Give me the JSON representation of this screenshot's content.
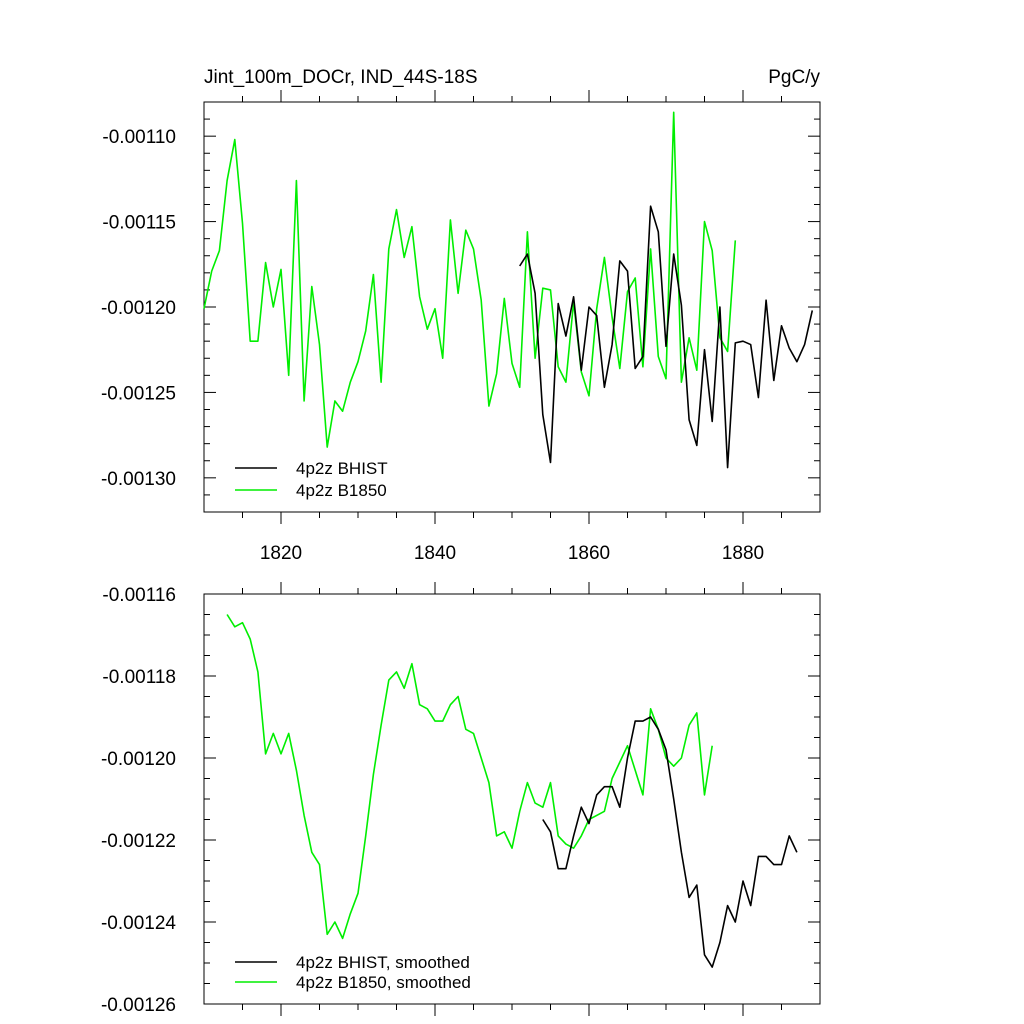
{
  "chart_data": [
    {
      "type": "line",
      "title": "Jint_100m_DOCr, IND_44S-18S",
      "units": "PgC/y",
      "xlim": [
        1810,
        1890
      ],
      "ylim": [
        -0.00132,
        -0.00108
      ],
      "x_ticks": [
        1820,
        1840,
        1860,
        1880
      ],
      "x_tick_labels": [
        "1820",
        "1840",
        "1860",
        "1880"
      ],
      "y_ticks": [
        -0.0011,
        -0.00115,
        -0.0012,
        -0.00125,
        -0.0013
      ],
      "y_tick_labels": [
        "-0.00110",
        "-0.00115",
        "-0.00120",
        "-0.00125",
        "-0.00130"
      ],
      "legend_position": "bottom-left",
      "series": [
        {
          "name": "4p2z BHIST",
          "color": "#000000",
          "x": [
            1851,
            1852,
            1853,
            1854,
            1855,
            1856,
            1857,
            1858,
            1859,
            1860,
            1861,
            1862,
            1863,
            1864,
            1865,
            1866,
            1867,
            1868,
            1869,
            1870,
            1871,
            1872,
            1873,
            1874,
            1875,
            1876,
            1877,
            1878,
            1879,
            1880,
            1881,
            1882,
            1883,
            1884,
            1885,
            1886,
            1887,
            1888,
            1889
          ],
          "values": [
            -0.001176,
            -0.001169,
            -0.001192,
            -0.001263,
            -0.001291,
            -0.001198,
            -0.001217,
            -0.001194,
            -0.001237,
            -0.0012,
            -0.001205,
            -0.001247,
            -0.001222,
            -0.001173,
            -0.001179,
            -0.001236,
            -0.001229,
            -0.001141,
            -0.001156,
            -0.001223,
            -0.001169,
            -0.001199,
            -0.001266,
            -0.001281,
            -0.001225,
            -0.001267,
            -0.0012,
            -0.001294,
            -0.001221,
            -0.00122,
            -0.001222,
            -0.001253,
            -0.001196,
            -0.001243,
            -0.001211,
            -0.001224,
            -0.001232,
            -0.001222,
            -0.001202
          ]
        },
        {
          "name": "4p2z B1850",
          "color": "#00ee00",
          "x": [
            1810,
            1811,
            1812,
            1813,
            1814,
            1815,
            1816,
            1817,
            1818,
            1819,
            1820,
            1821,
            1822,
            1823,
            1824,
            1825,
            1826,
            1827,
            1828,
            1829,
            1830,
            1831,
            1832,
            1833,
            1834,
            1835,
            1836,
            1837,
            1838,
            1839,
            1840,
            1841,
            1842,
            1843,
            1844,
            1845,
            1846,
            1847,
            1848,
            1849,
            1850,
            1851,
            1852,
            1853,
            1854,
            1855,
            1856,
            1857,
            1858,
            1859,
            1860,
            1861,
            1862,
            1863,
            1864,
            1865,
            1866,
            1867,
            1868,
            1869,
            1870,
            1871,
            1872,
            1873,
            1874,
            1875,
            1876,
            1877,
            1878,
            1879
          ],
          "values": [
            -0.001201,
            -0.001179,
            -0.001167,
            -0.001126,
            -0.001102,
            -0.001151,
            -0.00122,
            -0.00122,
            -0.001174,
            -0.0012,
            -0.001178,
            -0.00124,
            -0.001126,
            -0.001255,
            -0.001188,
            -0.001222,
            -0.001282,
            -0.001255,
            -0.001261,
            -0.001244,
            -0.001232,
            -0.001214,
            -0.001181,
            -0.001244,
            -0.001166,
            -0.001143,
            -0.001171,
            -0.001153,
            -0.001194,
            -0.001213,
            -0.001201,
            -0.00123,
            -0.001149,
            -0.001192,
            -0.001155,
            -0.001166,
            -0.001196,
            -0.001258,
            -0.001239,
            -0.001195,
            -0.001233,
            -0.001247,
            -0.001156,
            -0.00123,
            -0.001189,
            -0.00119,
            -0.001235,
            -0.001244,
            -0.001197,
            -0.001238,
            -0.001252,
            -0.001201,
            -0.001171,
            -0.001206,
            -0.001236,
            -0.001191,
            -0.001183,
            -0.001235,
            -0.001166,
            -0.001229,
            -0.001242,
            -0.001086,
            -0.001244,
            -0.001218,
            -0.001237,
            -0.00115,
            -0.001167,
            -0.001218,
            -0.001226,
            -0.001161
          ]
        }
      ]
    },
    {
      "type": "line",
      "xlim": [
        1810,
        1890
      ],
      "ylim": [
        -0.00126,
        -0.00116
      ],
      "x_ticks": [
        1820,
        1840,
        1860,
        1880
      ],
      "y_ticks": [
        -0.00116,
        -0.00118,
        -0.0012,
        -0.00122,
        -0.00124,
        -0.00126
      ],
      "y_tick_labels": [
        "-0.00116",
        "-0.00118",
        "-0.00120",
        "-0.00122",
        "-0.00124",
        "-0.00126"
      ],
      "legend_position": "bottom-left",
      "series": [
        {
          "name": "4p2z BHIST, smoothed",
          "color": "#000000",
          "x": [
            1854,
            1855,
            1856,
            1857,
            1858,
            1859,
            1860,
            1861,
            1862,
            1863,
            1864,
            1865,
            1866,
            1867,
            1868,
            1869,
            1870,
            1871,
            1872,
            1873,
            1874,
            1875,
            1876,
            1877,
            1878,
            1879,
            1880,
            1881,
            1882,
            1883,
            1884,
            1885,
            1886,
            1887
          ],
          "values": [
            -0.001215,
            -0.001218,
            -0.001227,
            -0.001227,
            -0.001219,
            -0.001212,
            -0.001216,
            -0.001209,
            -0.001207,
            -0.001207,
            -0.001212,
            -0.0012,
            -0.001191,
            -0.001191,
            -0.00119,
            -0.001193,
            -0.001198,
            -0.00121,
            -0.001223,
            -0.001234,
            -0.001231,
            -0.001248,
            -0.001251,
            -0.001245,
            -0.001236,
            -0.00124,
            -0.00123,
            -0.001236,
            -0.001224,
            -0.001224,
            -0.001226,
            -0.001226,
            -0.001219,
            -0.001223
          ]
        },
        {
          "name": "4p2z B1850, smoothed",
          "color": "#00ee00",
          "x": [
            1813,
            1814,
            1815,
            1816,
            1817,
            1818,
            1819,
            1820,
            1821,
            1822,
            1823,
            1824,
            1825,
            1826,
            1827,
            1828,
            1829,
            1830,
            1831,
            1832,
            1833,
            1834,
            1835,
            1836,
            1837,
            1838,
            1839,
            1840,
            1841,
            1842,
            1843,
            1844,
            1845,
            1846,
            1847,
            1848,
            1849,
            1850,
            1851,
            1852,
            1853,
            1854,
            1855,
            1856,
            1857,
            1858,
            1859,
            1860,
            1861,
            1862,
            1863,
            1864,
            1865,
            1866,
            1867,
            1868,
            1869,
            1870,
            1871,
            1872,
            1873,
            1874,
            1875,
            1876
          ],
          "values": [
            -0.001165,
            -0.001168,
            -0.001167,
            -0.001171,
            -0.001179,
            -0.001199,
            -0.001194,
            -0.001199,
            -0.001194,
            -0.001203,
            -0.001214,
            -0.001223,
            -0.001226,
            -0.001243,
            -0.00124,
            -0.001244,
            -0.001238,
            -0.001233,
            -0.001219,
            -0.001204,
            -0.001192,
            -0.001181,
            -0.001179,
            -0.001183,
            -0.001177,
            -0.001187,
            -0.001188,
            -0.001191,
            -0.001191,
            -0.001187,
            -0.001185,
            -0.001193,
            -0.001194,
            -0.0012,
            -0.001206,
            -0.001219,
            -0.001218,
            -0.001222,
            -0.001213,
            -0.001206,
            -0.001211,
            -0.001212,
            -0.001206,
            -0.001219,
            -0.001221,
            -0.001222,
            -0.001219,
            -0.001215,
            -0.001214,
            -0.001213,
            -0.001205,
            -0.001201,
            -0.001197,
            -0.001203,
            -0.001209,
            -0.001188,
            -0.001193,
            -0.0012,
            -0.001202,
            -0.0012,
            -0.001192,
            -0.001189,
            -0.001209,
            -0.001197
          ]
        }
      ]
    }
  ]
}
